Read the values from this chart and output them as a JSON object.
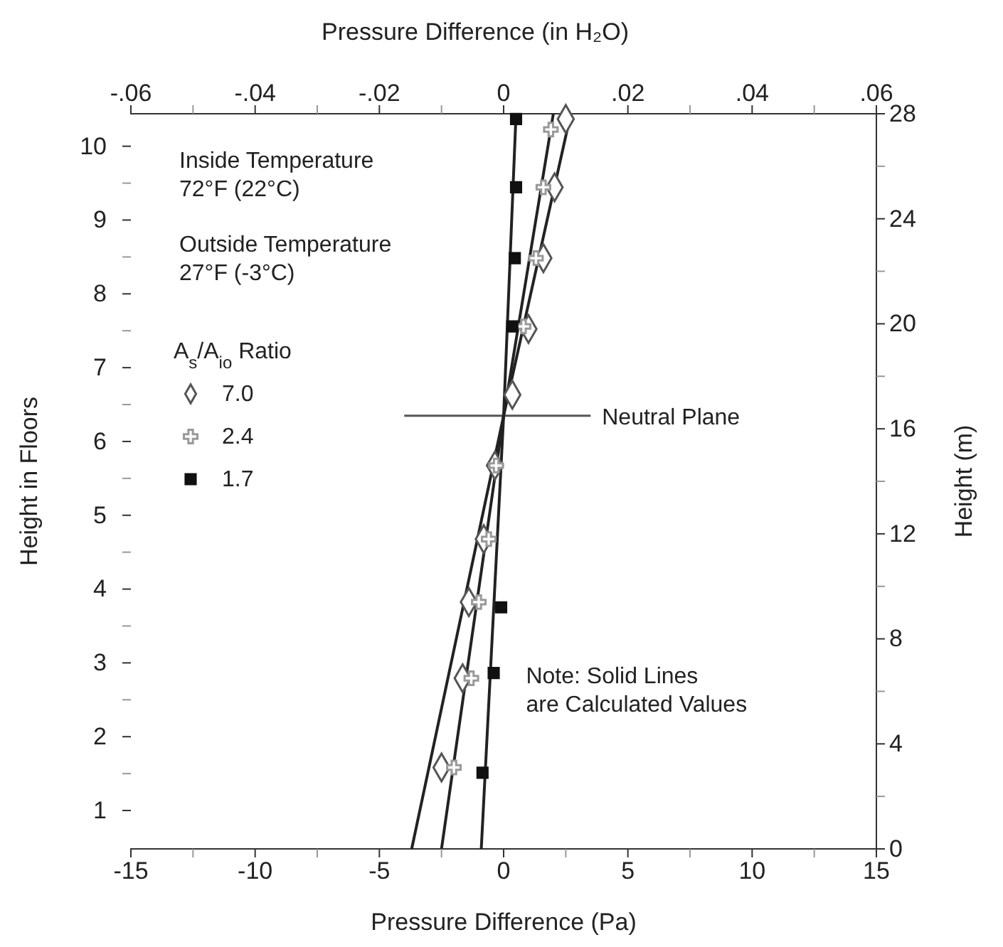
{
  "chart_data": {
    "type": "line",
    "xlabel": "Pressure Difference (Pa)",
    "x2label": "Pressure Difference (in H₂O)",
    "ylabel": "Height in Floors",
    "y2label": "Height (m)",
    "legend_title": "A$_{s}$/A$_{io}$ Ratio",
    "legend": "top left",
    "grid": false,
    "xlim": [
      -15,
      15
    ],
    "xticks": [
      -15,
      {
        "value": -12.5,
        "label": null
      },
      -10,
      {
        "value": -7.5,
        "label": null
      },
      -5,
      {
        "value": -2.5,
        "label": null
      },
      0,
      {
        "value": 2.5,
        "label": null
      },
      5,
      {
        "value": 7.5,
        "label": null
      },
      10,
      {
        "value": 12.5,
        "label": null
      },
      15
    ],
    "x2lim": [
      -0.06,
      0.06
    ],
    "x2ticks": [
      {
        "value": -0.06,
        "label": "-.06"
      },
      {
        "value": -0.05,
        "label": null
      },
      {
        "value": -0.04,
        "label": "-.04"
      },
      {
        "value": -0.03,
        "label": null
      },
      {
        "value": -0.02,
        "label": "-.02"
      },
      {
        "value": -0.01,
        "label": null
      },
      0,
      {
        "value": 0.01,
        "label": null
      },
      {
        "value": 0.02,
        "label": ".02"
      },
      {
        "value": 0.03,
        "label": null
      },
      {
        "value": 0.04,
        "label": ".04"
      },
      {
        "value": 0.05,
        "label": null
      },
      {
        "value": 0.06,
        "label": ".06"
      }
    ],
    "ylim": [
      0.48,
      10.44
    ],
    "yticks": [
      1,
      {
        "value": 1.5,
        "label": null
      },
      2,
      {
        "value": 2.5,
        "label": null
      },
      3,
      {
        "value": 3.5,
        "label": null
      },
      4,
      {
        "value": 4.5,
        "label": null
      },
      5,
      {
        "value": 5.5,
        "label": null
      },
      6,
      {
        "value": 6.5,
        "label": null
      },
      7,
      {
        "value": 7.5,
        "label": null
      },
      8,
      {
        "value": 8.5,
        "label": null
      },
      9,
      {
        "value": 9.5,
        "label": null
      },
      10
    ],
    "y2lim": [
      0,
      28
    ],
    "y2ticks": [
      0,
      {
        "value": 2,
        "label": null
      },
      4,
      {
        "value": 6,
        "label": null
      },
      8,
      {
        "value": 10,
        "label": null
      },
      12,
      {
        "value": 14,
        "label": null
      },
      16,
      {
        "value": 18,
        "label": null
      },
      20,
      {
        "value": 22,
        "label": null
      },
      24,
      {
        "value": 26,
        "label": null
      },
      28
    ],
    "series": [
      {
        "axis": "y2",
        "color": "#222222",
        "line_style": "solid",
        "x": [
          -3.7,
          0,
          2.7
        ],
        "values": [
          0,
          16.5,
          28
        ]
      },
      {
        "axis": "y2",
        "color": "#222222",
        "line_style": "solid",
        "x": [
          -2.5,
          0,
          2.0
        ],
        "values": [
          0,
          16.5,
          28
        ]
      },
      {
        "axis": "y2",
        "color": "#222222",
        "line_style": "solid",
        "x": [
          -0.9,
          0,
          0.5
        ],
        "values": [
          0,
          16.5,
          28
        ]
      },
      {
        "type": "scatter",
        "axis": "y2",
        "name": "7.0",
        "color": "#555555",
        "marker": "diamond",
        "x": [
          2.5,
          2.05,
          1.6,
          1.0,
          0.35,
          -0.35,
          -0.8,
          -1.4,
          -1.65,
          -2.5
        ],
        "values": [
          27.8,
          25.2,
          22.5,
          19.8,
          17.3,
          14.6,
          11.8,
          9.4,
          6.5,
          3.1
        ]
      },
      {
        "type": "scatter",
        "axis": "y2",
        "name": "2.4",
        "color": "#999999",
        "marker": "cross",
        "x": [
          1.9,
          1.6,
          1.3,
          0.8,
          -0.3,
          -0.6,
          -1.0,
          -1.3,
          -2.0
        ],
        "values": [
          27.4,
          25.2,
          22.5,
          19.9,
          14.6,
          11.8,
          9.4,
          6.5,
          3.1
        ]
      },
      {
        "type": "scatter",
        "axis": "y2",
        "name": "1.7",
        "color": "#111111",
        "marker": "square",
        "x": [
          0.5,
          0.5,
          0.45,
          0.35,
          -0.1,
          -0.4,
          -0.85
        ],
        "values": [
          27.8,
          25.2,
          22.5,
          19.9,
          9.2,
          6.7,
          2.9
        ]
      }
    ],
    "ref_lines": [
      {
        "axis": "y2",
        "value": 16.5,
        "label": "Neutral Plane",
        "color": "#555555"
      }
    ],
    "annotations": [
      "Inside Temperature\n72°F (22°C)",
      "Outside Temperature\n27°F (-3°C)",
      "Note: Solid Lines\nare Calculated Values"
    ]
  }
}
